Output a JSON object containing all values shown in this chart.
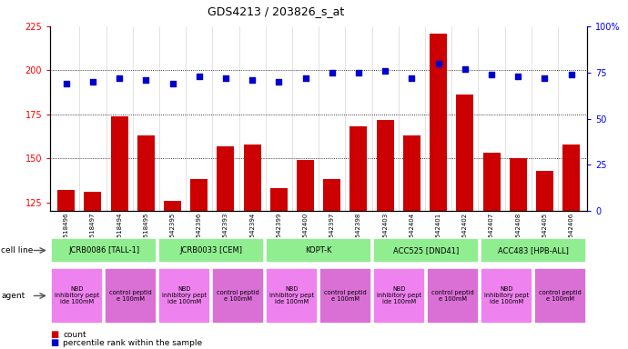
{
  "title": "GDS4213 / 203826_s_at",
  "samples": [
    "GSM518496",
    "GSM518497",
    "GSM518494",
    "GSM518495",
    "GSM542395",
    "GSM542396",
    "GSM542393",
    "GSM542394",
    "GSM542399",
    "GSM542400",
    "GSM542397",
    "GSM542398",
    "GSM542403",
    "GSM542404",
    "GSM542401",
    "GSM542402",
    "GSM542407",
    "GSM542408",
    "GSM542405",
    "GSM542406"
  ],
  "counts": [
    132,
    131,
    174,
    163,
    126,
    138,
    157,
    158,
    133,
    149,
    138,
    168,
    172,
    163,
    221,
    186,
    153,
    150,
    143,
    158
  ],
  "percentiles": [
    69,
    70,
    72,
    71,
    69,
    73,
    72,
    71,
    70,
    72,
    75,
    75,
    76,
    72,
    80,
    77,
    74,
    73,
    72,
    74
  ],
  "cell_lines": [
    {
      "label": "JCRB0086 [TALL-1]",
      "start": 0,
      "end": 4,
      "color": "#90ee90"
    },
    {
      "label": "JCRB0033 [CEM]",
      "start": 4,
      "end": 8,
      "color": "#90ee90"
    },
    {
      "label": "KOPT-K",
      "start": 8,
      "end": 12,
      "color": "#90ee90"
    },
    {
      "label": "ACC525 [DND41]",
      "start": 12,
      "end": 16,
      "color": "#90ee90"
    },
    {
      "label": "ACC483 [HPB-ALL]",
      "start": 16,
      "end": 20,
      "color": "#90ee90"
    }
  ],
  "agents": [
    {
      "label": "NBD\ninhibitory pept\nide 100mM",
      "start": 0,
      "end": 2,
      "color": "#ee82ee"
    },
    {
      "label": "control peptid\ne 100mM",
      "start": 2,
      "end": 4,
      "color": "#da70d6"
    },
    {
      "label": "NBD\ninhibitory pept\nide 100mM",
      "start": 4,
      "end": 6,
      "color": "#ee82ee"
    },
    {
      "label": "control peptid\ne 100mM",
      "start": 6,
      "end": 8,
      "color": "#da70d6"
    },
    {
      "label": "NBD\ninhibitory pept\nide 100mM",
      "start": 8,
      "end": 10,
      "color": "#ee82ee"
    },
    {
      "label": "control peptid\ne 100mM",
      "start": 10,
      "end": 12,
      "color": "#da70d6"
    },
    {
      "label": "NBD\ninhibitory pept\nide 100mM",
      "start": 12,
      "end": 14,
      "color": "#ee82ee"
    },
    {
      "label": "control peptid\ne 100mM",
      "start": 14,
      "end": 16,
      "color": "#da70d6"
    },
    {
      "label": "NBD\ninhibitory pept\nide 100mM",
      "start": 16,
      "end": 18,
      "color": "#ee82ee"
    },
    {
      "label": "control peptid\ne 100mM",
      "start": 18,
      "end": 20,
      "color": "#da70d6"
    }
  ],
  "ylim_left": [
    120,
    225
  ],
  "ylim_right": [
    0,
    100
  ],
  "yticks_left": [
    125,
    150,
    175,
    200,
    225
  ],
  "yticks_right": [
    0,
    25,
    50,
    75,
    100
  ],
  "bar_color": "#cc0000",
  "dot_color": "#0000cc",
  "bg_color": "#ffffff",
  "grid_lines": [
    150,
    175,
    200
  ]
}
